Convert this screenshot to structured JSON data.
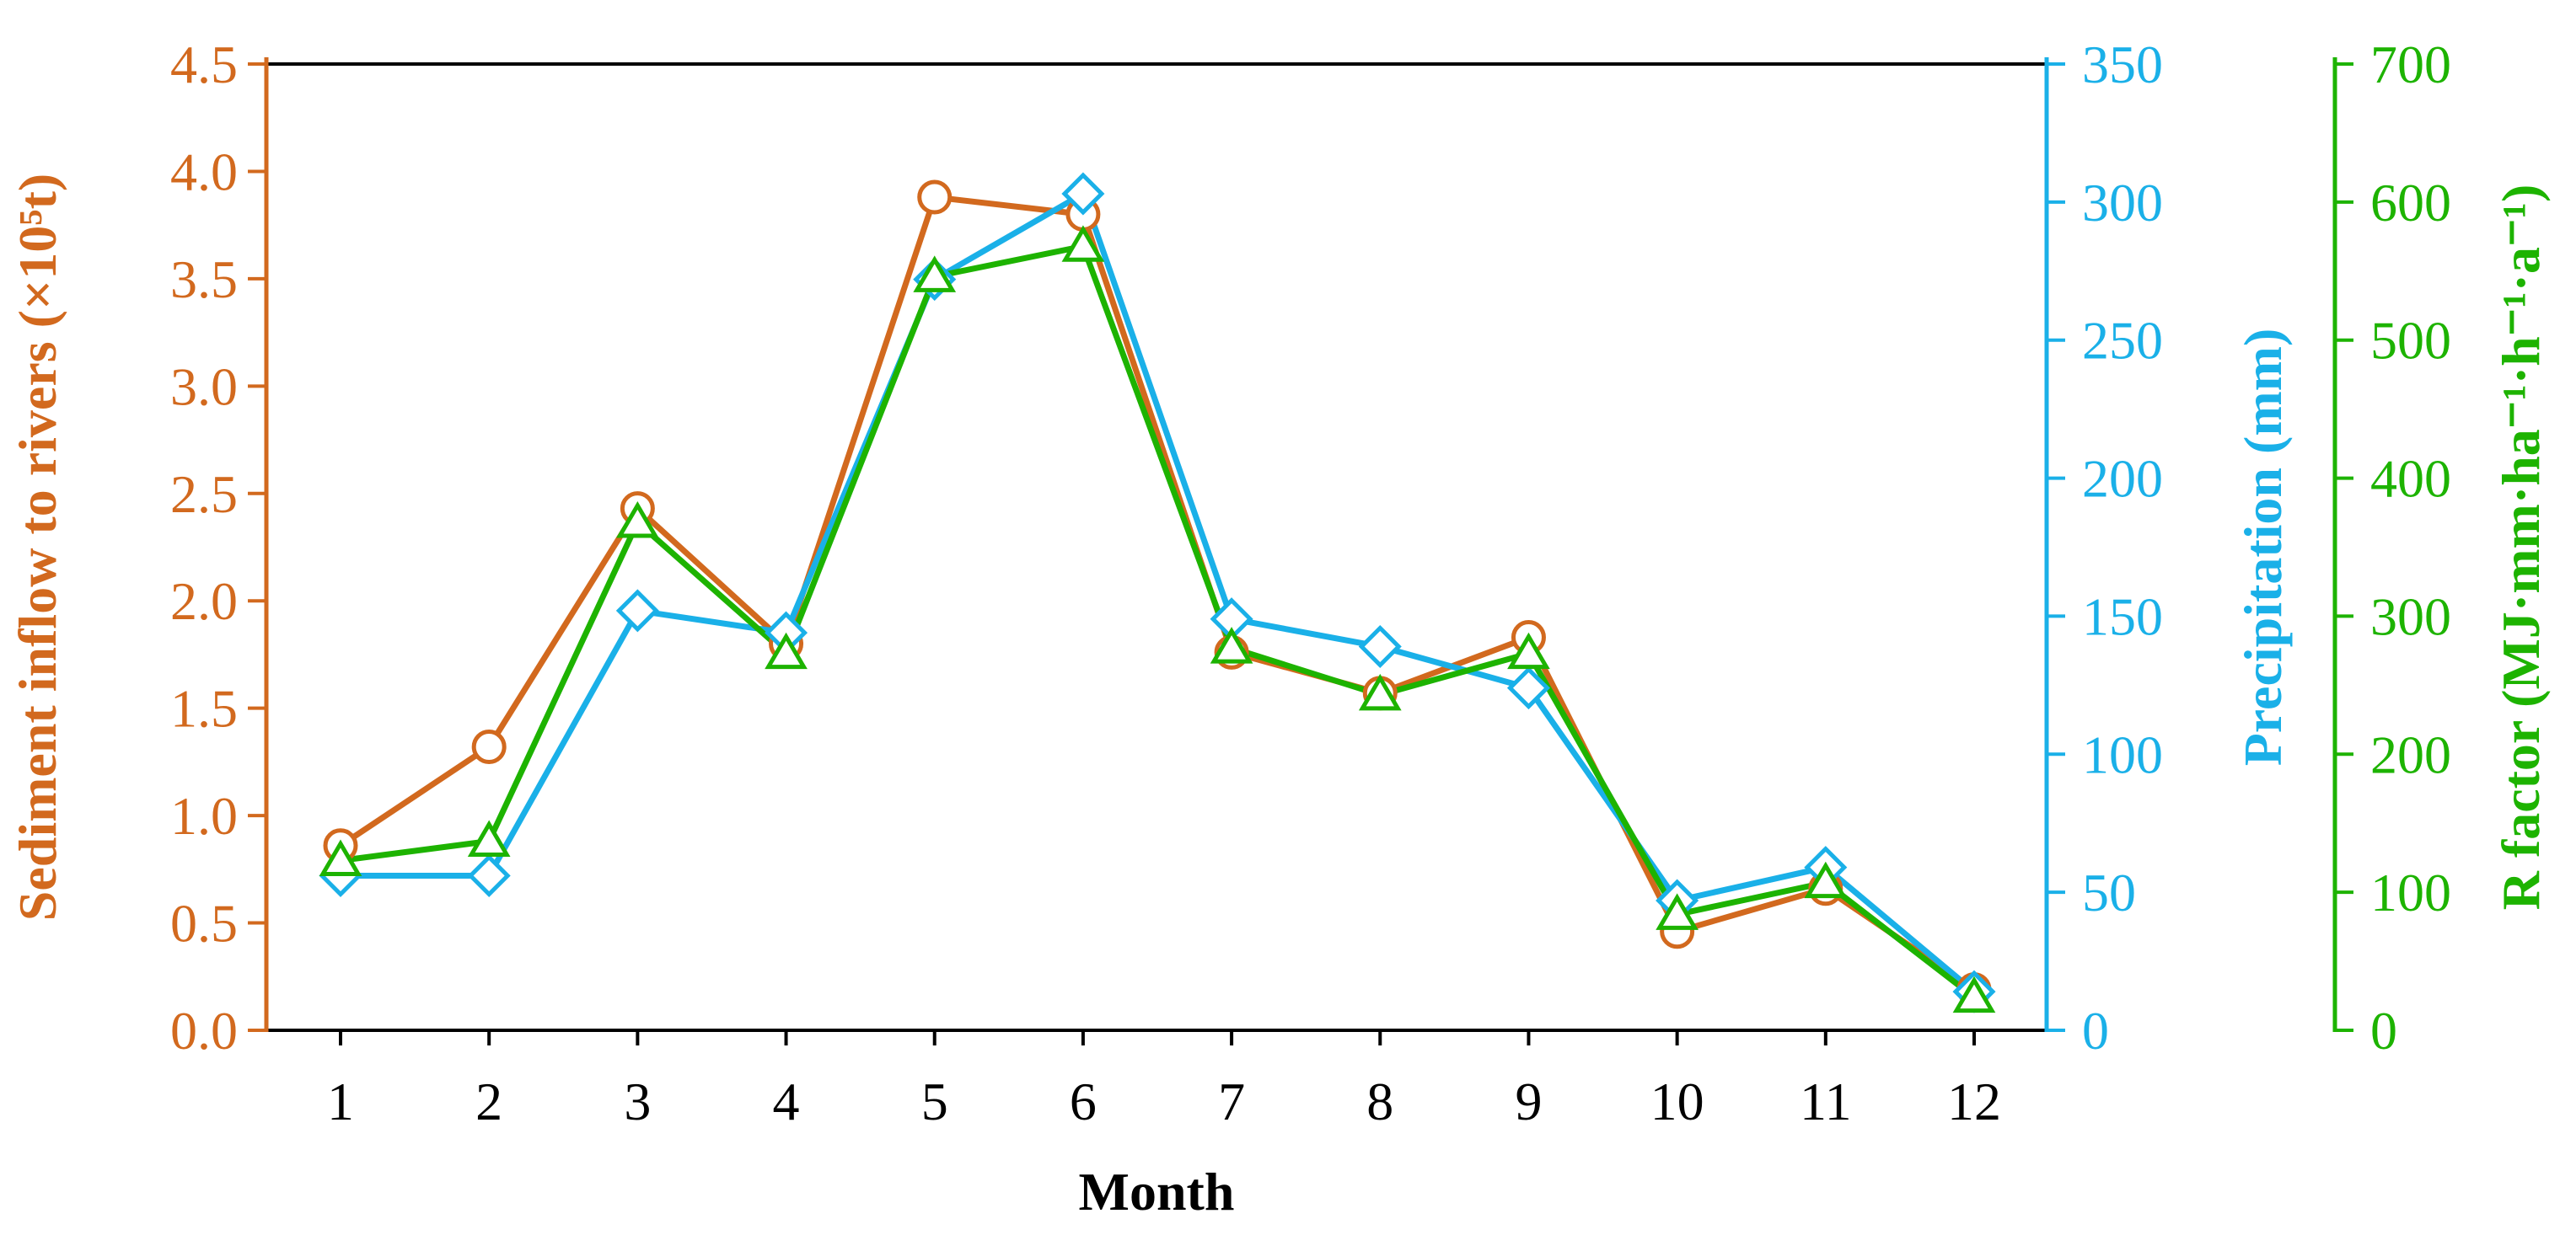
{
  "chart_data": {
    "type": "line",
    "categories": [
      "1",
      "2",
      "3",
      "4",
      "5",
      "6",
      "7",
      "8",
      "9",
      "10",
      "11",
      "12"
    ],
    "xlabel": "Month",
    "axes": {
      "left": {
        "label": "Sediment inflow to rivers (×10⁵t)",
        "range": [
          0,
          4.5
        ],
        "ticks": [
          "0.0",
          "0.5",
          "1.0",
          "1.5",
          "2.0",
          "2.5",
          "3.0",
          "3.5",
          "4.0",
          "4.5"
        ],
        "color": "#d2691e"
      },
      "right1": {
        "label": "Precipitation (mm)",
        "range": [
          0,
          350
        ],
        "ticks": [
          "0",
          "50",
          "100",
          "150",
          "200",
          "250",
          "300",
          "350"
        ],
        "color": "#1ab0e8"
      },
      "right2": {
        "label": "R factor (MJ·mm·ha⁻¹·h⁻¹·a⁻¹)",
        "range": [
          0,
          700
        ],
        "ticks": [
          "0",
          "100",
          "200",
          "300",
          "400",
          "500",
          "600",
          "700"
        ],
        "color": "#1db300"
      }
    },
    "series": [
      {
        "name": "Sediment inflow to rivers",
        "axis": "left",
        "marker": "circle",
        "color": "#d2691e",
        "values": [
          0.86,
          1.32,
          2.43,
          1.8,
          3.88,
          3.8,
          1.76,
          1.57,
          1.83,
          0.46,
          0.66,
          0.19
        ]
      },
      {
        "name": "Precipitation",
        "axis": "right1",
        "marker": "diamond",
        "color": "#1ab0e8",
        "values": [
          56,
          56,
          152,
          144,
          272,
          303,
          149,
          139,
          124,
          47,
          59,
          14
        ]
      },
      {
        "name": "R factor",
        "axis": "right2",
        "marker": "triangle",
        "color": "#1db300",
        "values": [
          123,
          137,
          368,
          273,
          546,
          568,
          277,
          243,
          273,
          84,
          107,
          24
        ]
      }
    ]
  }
}
